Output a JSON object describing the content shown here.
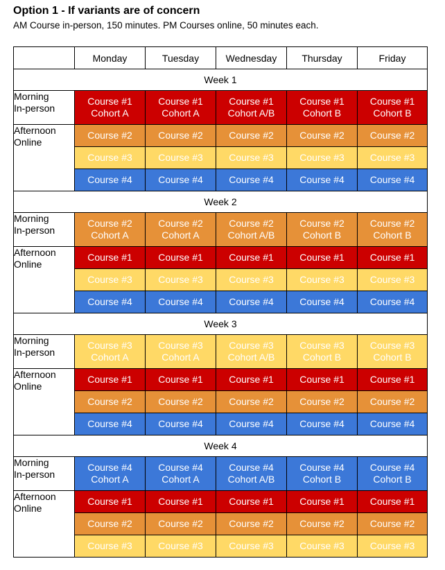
{
  "title": "Option 1 - If variants are of concern",
  "subtitle": "AM Course in-person, 150 minutes. PM Courses online, 50 minutes each.",
  "days": [
    "Monday",
    "Tuesday",
    "Wednesday",
    "Thursday",
    "Friday"
  ],
  "slot_labels": {
    "morning": [
      "Morning",
      "In-person"
    ],
    "afternoon": [
      "Afternoon",
      "Online"
    ]
  },
  "colors": {
    "course_1": "#cc0000",
    "course_2": "#e69138",
    "course_3": "#ffd966",
    "course_4": "#3c78d8"
  },
  "weeks": [
    {
      "label": "Week 1",
      "morning_course": "Course #1",
      "cohorts": [
        "Cohort A",
        "Cohort A",
        "Cohort A/B",
        "Cohort B",
        "Cohort B"
      ],
      "afternoon_courses": [
        "Course #2",
        "Course #3",
        "Course #4"
      ]
    },
    {
      "label": "Week 2",
      "morning_course": "Course #2",
      "cohorts": [
        "Cohort A",
        "Cohort A",
        "Cohort A/B",
        "Cohort B",
        "Cohort B"
      ],
      "afternoon_courses": [
        "Course #1",
        "Course #3",
        "Course #4"
      ]
    },
    {
      "label": "Week 3",
      "morning_course": "Course #3",
      "cohorts": [
        "Cohort A",
        "Cohort A",
        "Cohort A/B",
        "Cohort B",
        "Cohort B"
      ],
      "afternoon_courses": [
        "Course #1",
        "Course #2",
        "Course #4"
      ]
    },
    {
      "label": "Week 4",
      "morning_course": "Course #4",
      "cohorts": [
        "Cohort A",
        "Cohort A",
        "Cohort A/B",
        "Cohort B",
        "Cohort B"
      ],
      "afternoon_courses": [
        "Course #1",
        "Course #2",
        "Course #3"
      ]
    }
  ]
}
